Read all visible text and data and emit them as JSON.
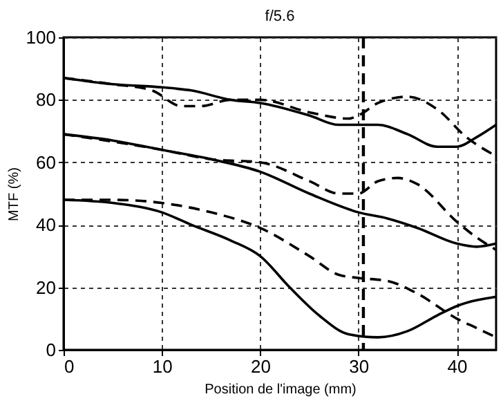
{
  "chart_data": {
    "type": "line",
    "title": "f/5.6",
    "xlabel": "Position de l'image (mm)",
    "ylabel": "MTF (%)",
    "xlim": [
      0,
      44
    ],
    "xticks": [
      0,
      10,
      20,
      30,
      40
    ],
    "ylim": [
      0,
      100
    ],
    "yticks": [
      0,
      20,
      40,
      60,
      80,
      100
    ],
    "grid": true,
    "legend": false,
    "marker": "none",
    "ref_lines": [
      {
        "axis": "x",
        "value": 30.5,
        "line_style": "dashed",
        "color": "#000000"
      }
    ],
    "series": [
      {
        "color": "#000000",
        "line_style": "solid",
        "x": [
          0,
          5,
          10,
          13,
          17,
          20,
          25,
          28,
          30,
          32,
          35,
          38,
          40,
          42,
          44
        ],
        "values": [
          87,
          85,
          84,
          83,
          80,
          79,
          75,
          72,
          72,
          72,
          69,
          65,
          65,
          68,
          72
        ]
      },
      {
        "color": "#000000",
        "line_style": "dashed",
        "x": [
          0,
          5,
          9,
          12,
          14,
          17,
          20,
          25,
          29,
          30,
          32,
          35,
          38,
          41,
          44
        ],
        "values": [
          87,
          85,
          83,
          78,
          78,
          80,
          80,
          76,
          74,
          75,
          79,
          81,
          77,
          68,
          62
        ]
      },
      {
        "color": "#000000",
        "line_style": "solid",
        "x": [
          0,
          5,
          10,
          15,
          20,
          25,
          30,
          33,
          36,
          40,
          42,
          44
        ],
        "values": [
          69,
          67,
          64,
          61,
          57,
          50,
          44,
          42,
          39,
          34,
          33,
          34
        ]
      },
      {
        "color": "#000000",
        "line_style": "dashed",
        "x": [
          0,
          10,
          15,
          20,
          25,
          28,
          30,
          32,
          34,
          36,
          40,
          42,
          44
        ],
        "values": [
          69,
          64,
          61,
          60,
          54,
          50,
          50,
          54,
          55,
          53,
          41,
          36,
          32
        ]
      },
      {
        "color": "#000000",
        "line_style": "solid",
        "x": [
          0,
          5,
          10,
          13,
          17,
          20,
          23,
          26,
          29,
          32,
          35,
          38,
          40,
          44
        ],
        "values": [
          48,
          47,
          44,
          40,
          35,
          30,
          20,
          11,
          5,
          4,
          6,
          11,
          14,
          17
        ]
      },
      {
        "color": "#000000",
        "line_style": "dashed",
        "x": [
          0,
          5,
          10,
          15,
          20,
          25,
          28,
          30,
          33,
          36,
          40,
          42,
          44
        ],
        "values": [
          48,
          48,
          47,
          44,
          39,
          30,
          24,
          23,
          22,
          18,
          10,
          7,
          4
        ]
      }
    ]
  }
}
